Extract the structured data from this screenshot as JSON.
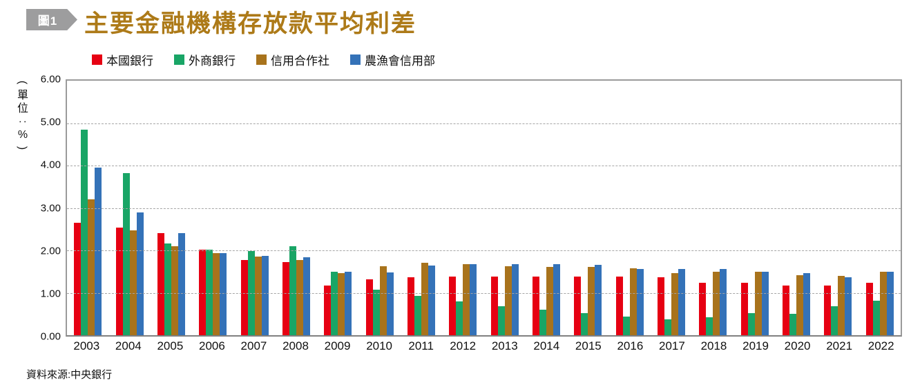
{
  "header": {
    "badge_label": "圖1",
    "title": "主要金融機構存放款平均利差"
  },
  "source_note": "資料來源:中央銀行",
  "colors": {
    "title_gold": "#ad7a18",
    "badge_gray": "#9d9d9e",
    "grid_gray": "#a5a5a5",
    "border_gray": "#9a9a9a",
    "series_red": "#e60012",
    "series_green": "#19a566",
    "series_brown": "#a8731c",
    "series_blue": "#3472b8"
  },
  "chart_data": {
    "type": "bar",
    "title": "主要金融機構存放款平均利差",
    "unit_label": "(單位:%)",
    "xlabel": "",
    "ylabel": "單位:%",
    "ylim": [
      0,
      6
    ],
    "yticks": [
      "6.00",
      "5.00",
      "4.00",
      "3.00",
      "2.00",
      "1.00",
      "0.00"
    ],
    "grid": "horizontal-dashed",
    "legend_position": "top",
    "categories": [
      "2003",
      "2004",
      "2005",
      "2006",
      "2007",
      "2008",
      "2009",
      "2010",
      "2011",
      "2012",
      "2013",
      "2014",
      "2015",
      "2016",
      "2017",
      "2018",
      "2019",
      "2020",
      "2021",
      "2022"
    ],
    "series": [
      {
        "name": "本國銀行",
        "color": "#e60012",
        "values": [
          2.65,
          2.53,
          2.4,
          2.02,
          1.78,
          1.72,
          1.17,
          1.32,
          1.36,
          1.39,
          1.39,
          1.39,
          1.38,
          1.39,
          1.36,
          1.24,
          1.23,
          1.17,
          1.17,
          1.24
        ]
      },
      {
        "name": "外商銀行",
        "color": "#19a566",
        "values": [
          4.85,
          3.82,
          2.17,
          2.02,
          1.98,
          2.1,
          1.5,
          1.07,
          0.93,
          0.8,
          0.68,
          0.61,
          0.52,
          0.44,
          0.37,
          0.43,
          0.52,
          0.51,
          0.69,
          0.82
        ]
      },
      {
        "name": "信用合作社",
        "color": "#a8731c",
        "values": [
          3.2,
          2.47,
          2.1,
          1.94,
          1.85,
          1.78,
          1.46,
          1.62,
          1.7,
          1.68,
          1.62,
          1.61,
          1.61,
          1.57,
          1.46,
          1.5,
          1.5,
          1.41,
          1.4,
          1.5
        ]
      },
      {
        "name": "農漁會信用部",
        "color": "#3472b8",
        "values": [
          3.95,
          2.9,
          2.4,
          1.94,
          1.87,
          1.83,
          1.5,
          1.48,
          1.65,
          1.68,
          1.67,
          1.67,
          1.66,
          1.56,
          1.56,
          1.56,
          1.49,
          1.46,
          1.36,
          1.5
        ]
      }
    ]
  }
}
